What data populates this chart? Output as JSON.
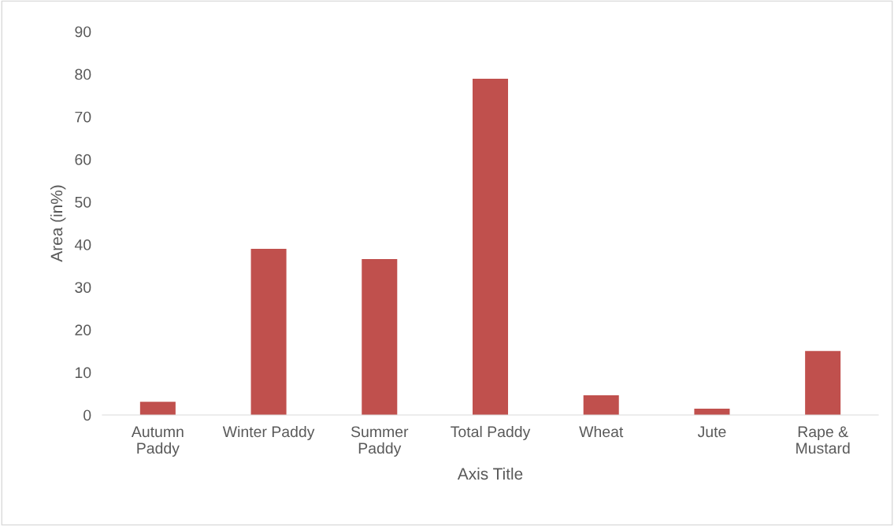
{
  "chart_data": {
    "type": "bar",
    "xlabel": "Axis Title",
    "ylabel": "Area (in%)",
    "categories": [
      "Autumn\nPaddy",
      "Winter Paddy",
      "Summer\nPaddy",
      "Total Paddy",
      "Wheat",
      "Jute",
      "Rape &\nMustard"
    ],
    "values": [
      3.1,
      39.0,
      36.6,
      78.9,
      4.6,
      1.5,
      15.0
    ],
    "color": "#c0504d",
    "ylim": [
      0,
      90
    ],
    "yticks": [
      0,
      10,
      20,
      30,
      40,
      50,
      60,
      70,
      80,
      90
    ],
    "grid": false,
    "legend": false
  }
}
